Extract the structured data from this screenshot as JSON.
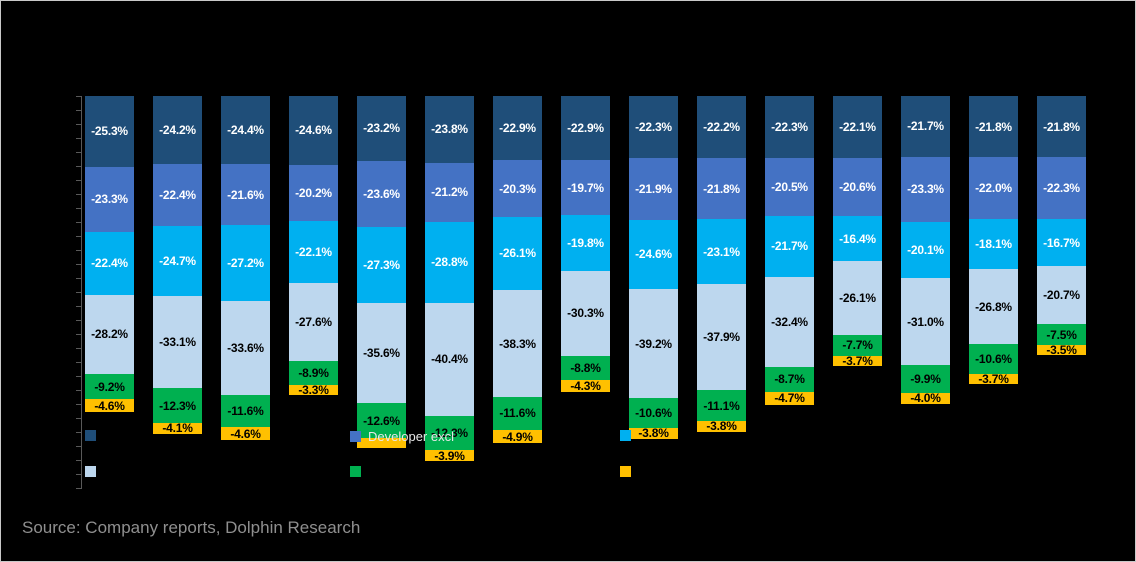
{
  "source_text": "Source: Company reports, Dolphin Research",
  "legend": {
    "items": [
      {
        "label": "",
        "color": "#1F4E79"
      },
      {
        "label": "Developer excl",
        "color": "#4472C4"
      },
      {
        "label": "",
        "color": "#00B0F0"
      },
      {
        "label": "",
        "color": "#BDD7EE"
      },
      {
        "label": "",
        "color": "#00B050"
      },
      {
        "label": "",
        "color": "#FFC000"
      }
    ]
  },
  "chart_data": {
    "type": "bar",
    "stacked": true,
    "orientation": "vertical",
    "num_bars": 15,
    "value_sign": "negative",
    "value_suffix": "%",
    "ylim": [
      0,
      -140
    ],
    "tick_step": 5,
    "grid": false,
    "legend_position": "bottom",
    "series": [
      {
        "name": "",
        "color": "#1F4E79",
        "label_color": "#FFFFFF",
        "values": [
          25.3,
          24.2,
          24.4,
          24.6,
          23.2,
          23.8,
          22.9,
          22.9,
          22.3,
          22.2,
          22.3,
          22.1,
          21.7,
          21.8,
          21.8
        ]
      },
      {
        "name": "Developer excl",
        "color": "#4472C4",
        "label_color": "#FFFFFF",
        "values": [
          23.3,
          22.4,
          21.6,
          20.2,
          23.6,
          21.2,
          20.3,
          19.7,
          21.9,
          21.8,
          20.5,
          20.6,
          23.3,
          22.0,
          22.3
        ]
      },
      {
        "name": "",
        "color": "#00B0F0",
        "label_color": "#FFFFFF",
        "values": [
          22.4,
          24.7,
          27.2,
          22.1,
          27.3,
          28.8,
          26.1,
          19.8,
          24.6,
          23.1,
          21.7,
          16.4,
          20.1,
          18.1,
          16.7
        ]
      },
      {
        "name": "",
        "color": "#BDD7EE",
        "label_color": "#000000",
        "values": [
          28.2,
          33.1,
          33.6,
          27.6,
          35.6,
          40.4,
          38.3,
          30.3,
          39.2,
          37.9,
          32.4,
          26.1,
          31.0,
          26.8,
          20.7
        ]
      },
      {
        "name": "",
        "color": "#00B050",
        "label_color": "#000000",
        "values": [
          9.2,
          12.3,
          11.6,
          8.9,
          12.6,
          12.3,
          11.6,
          8.8,
          10.6,
          11.1,
          8.7,
          7.7,
          9.9,
          10.6,
          7.5
        ]
      },
      {
        "name": "",
        "color": "#FFC000",
        "label_color": "#000000",
        "label_hidden": [
          4
        ],
        "values": [
          4.6,
          4.1,
          4.6,
          3.3,
          3.5,
          3.9,
          4.9,
          4.3,
          3.8,
          3.8,
          4.7,
          3.7,
          4.0,
          3.7,
          3.5
        ]
      }
    ]
  }
}
